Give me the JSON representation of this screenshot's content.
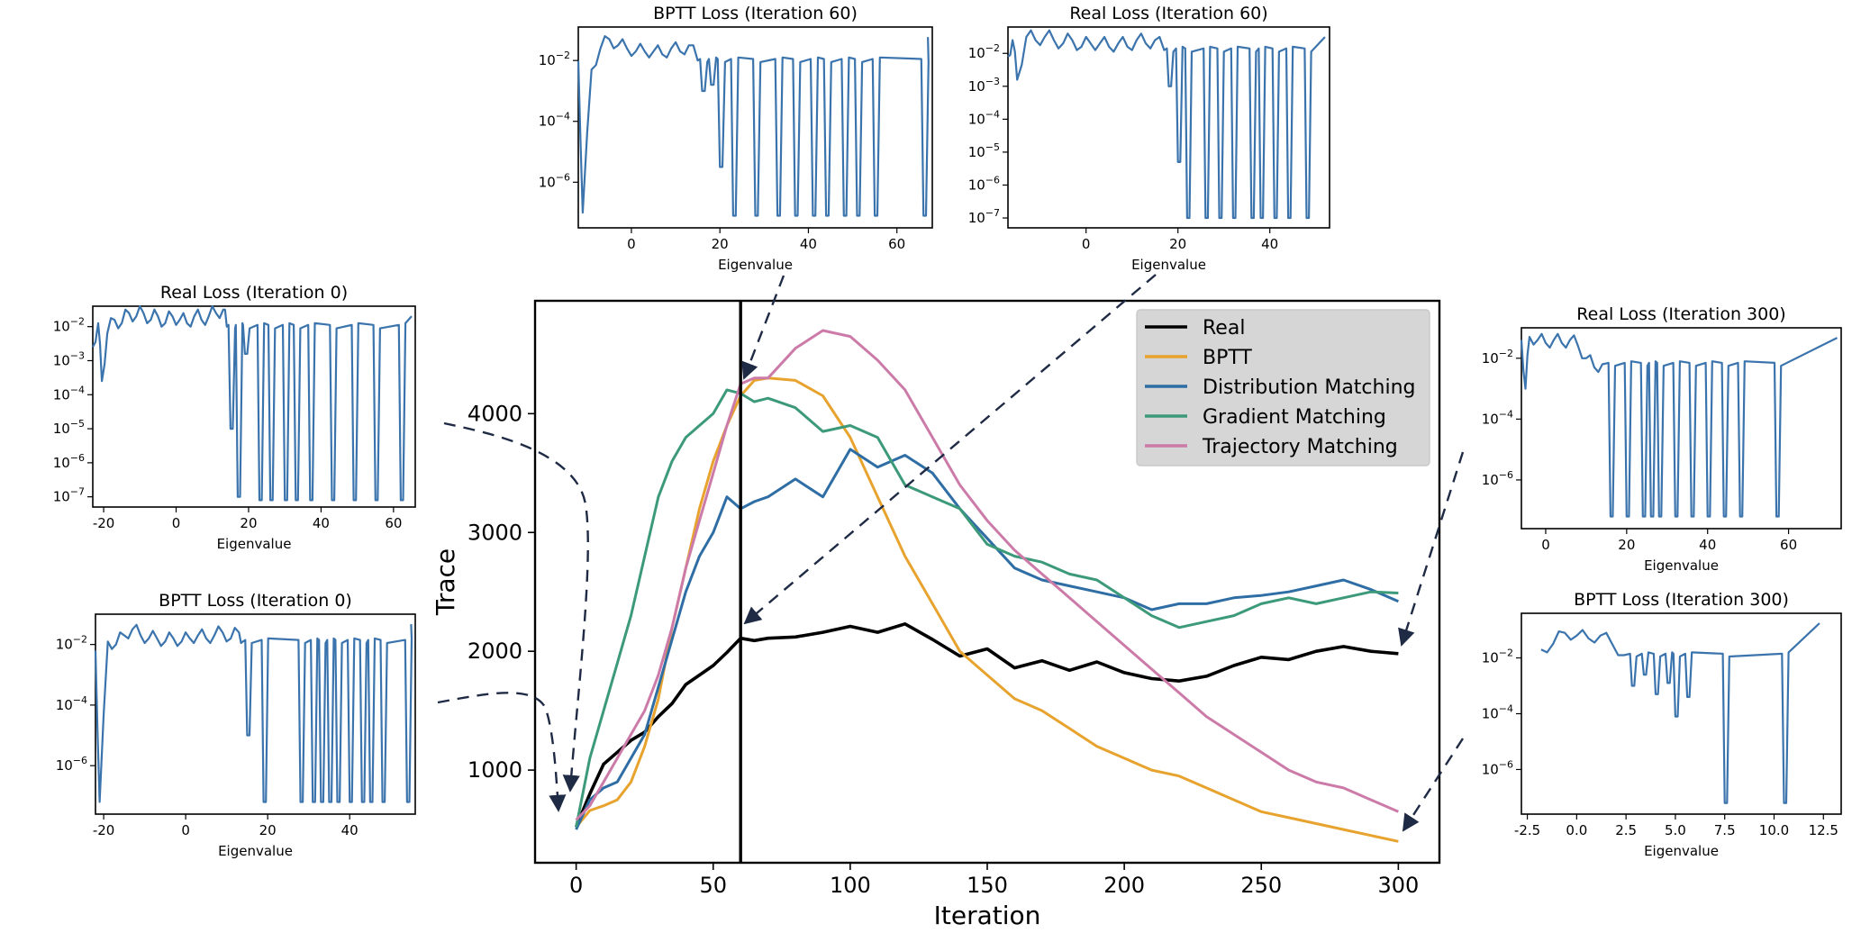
{
  "colors": {
    "real": "#000000",
    "bptt": "#e7a32e",
    "distribution": "#2f6ea5",
    "gradient": "#3c9a7a",
    "trajectory": "#cc7ba9",
    "inset_line": "#3b74ad",
    "arrow": "#1f2a44",
    "legend_bg": "#d6d6d6"
  },
  "chart_data": [
    {
      "id": "main",
      "type": "line",
      "title": "",
      "xlabel": "Iteration",
      "ylabel": "Trace",
      "xlim": [
        -15,
        315
      ],
      "ylim": [
        220,
        4950
      ],
      "xticks": [
        0,
        50,
        100,
        150,
        200,
        250,
        300
      ],
      "yticks": [
        1000,
        2000,
        3000,
        4000
      ],
      "vline_x": 60,
      "legend_position": "top-right",
      "series": [
        {
          "name": "Real",
          "key": "real",
          "x": [
            0,
            5,
            10,
            15,
            20,
            25,
            30,
            35,
            40,
            45,
            50,
            55,
            60,
            65,
            70,
            80,
            90,
            100,
            110,
            120,
            130,
            140,
            150,
            160,
            170,
            180,
            190,
            200,
            210,
            220,
            230,
            240,
            250,
            260,
            270,
            280,
            290,
            300
          ],
          "y": [
            520,
            800,
            1050,
            1150,
            1250,
            1320,
            1450,
            1560,
            1720,
            1800,
            1880,
            1990,
            2110,
            2090,
            2110,
            2120,
            2160,
            2210,
            2160,
            2230,
            2100,
            1960,
            2020,
            1860,
            1920,
            1840,
            1910,
            1820,
            1770,
            1750,
            1790,
            1880,
            1950,
            1930,
            2000,
            2040,
            2000,
            1980
          ]
        },
        {
          "name": "BPTT",
          "key": "bptt",
          "x": [
            0,
            5,
            10,
            15,
            20,
            25,
            30,
            35,
            40,
            45,
            50,
            55,
            60,
            65,
            70,
            80,
            90,
            100,
            110,
            120,
            130,
            140,
            150,
            160,
            170,
            180,
            190,
            200,
            210,
            220,
            230,
            240,
            250,
            260,
            270,
            280,
            290,
            300
          ],
          "y": [
            520,
            660,
            700,
            750,
            900,
            1200,
            1600,
            2200,
            2700,
            3200,
            3600,
            3900,
            4150,
            4280,
            4300,
            4280,
            4150,
            3800,
            3300,
            2800,
            2400,
            2000,
            1800,
            1600,
            1500,
            1350,
            1200,
            1100,
            1000,
            950,
            850,
            750,
            650,
            600,
            550,
            500,
            450,
            400
          ]
        },
        {
          "name": "Distribution Matching",
          "key": "distribution",
          "x": [
            0,
            5,
            10,
            15,
            20,
            25,
            30,
            35,
            40,
            45,
            50,
            55,
            60,
            65,
            70,
            80,
            90,
            100,
            110,
            120,
            130,
            140,
            150,
            160,
            170,
            180,
            190,
            200,
            210,
            220,
            230,
            240,
            250,
            260,
            270,
            280,
            290,
            300
          ],
          "y": [
            500,
            750,
            850,
            900,
            1100,
            1300,
            1700,
            2100,
            2500,
            2800,
            3000,
            3300,
            3200,
            3260,
            3300,
            3450,
            3300,
            3700,
            3550,
            3650,
            3500,
            3200,
            2950,
            2700,
            2600,
            2550,
            2500,
            2450,
            2350,
            2400,
            2400,
            2450,
            2470,
            2500,
            2550,
            2600,
            2520,
            2420
          ]
        },
        {
          "name": "Gradient Matching",
          "key": "gradient",
          "x": [
            0,
            5,
            10,
            15,
            20,
            25,
            30,
            35,
            40,
            45,
            50,
            55,
            60,
            65,
            70,
            80,
            90,
            100,
            110,
            120,
            130,
            140,
            150,
            160,
            170,
            180,
            190,
            200,
            210,
            220,
            230,
            240,
            250,
            260,
            270,
            280,
            290,
            300
          ],
          "y": [
            520,
            1100,
            1500,
            1900,
            2300,
            2800,
            3300,
            3600,
            3800,
            3900,
            4000,
            4200,
            4170,
            4100,
            4130,
            4050,
            3850,
            3900,
            3800,
            3400,
            3300,
            3200,
            2900,
            2800,
            2750,
            2650,
            2600,
            2450,
            2300,
            2200,
            2250,
            2300,
            2400,
            2450,
            2400,
            2450,
            2500,
            2490
          ]
        },
        {
          "name": "Trajectory Matching",
          "key": "trajectory",
          "x": [
            0,
            5,
            10,
            15,
            20,
            25,
            30,
            35,
            40,
            45,
            50,
            55,
            60,
            65,
            70,
            80,
            90,
            100,
            110,
            120,
            130,
            140,
            150,
            160,
            170,
            180,
            190,
            200,
            210,
            220,
            230,
            240,
            250,
            260,
            270,
            280,
            290,
            300
          ],
          "y": [
            580,
            700,
            900,
            1100,
            1300,
            1500,
            1800,
            2200,
            2700,
            3100,
            3500,
            3900,
            4250,
            4300,
            4300,
            4550,
            4700,
            4650,
            4450,
            4200,
            3800,
            3400,
            3100,
            2850,
            2650,
            2450,
            2250,
            2050,
            1850,
            1650,
            1450,
            1300,
            1150,
            1000,
            900,
            850,
            750,
            650
          ]
        }
      ]
    },
    {
      "id": "real-0",
      "type": "line",
      "title": "Real Loss (Iteration 0)",
      "xlabel": "Eigenvalue",
      "scale_y": "log",
      "xlim": [
        -23,
        66
      ],
      "ylim": [
        -7.3,
        -1.4
      ],
      "xticks": [
        -20,
        0,
        20,
        40,
        60
      ],
      "yticks": [
        -2,
        -3,
        -4,
        -5,
        -6,
        -7
      ],
      "ytick_labels": [
        "10^-2",
        "10^-3",
        "10^-4",
        "10^-5",
        "10^-6",
        "10^-7"
      ]
    },
    {
      "id": "bptt-0",
      "type": "line",
      "title": "BPTT Loss (Iteration 0)",
      "xlabel": "Eigenvalue",
      "scale_y": "log",
      "xlim": [
        -22,
        56
      ],
      "ylim": [
        -7.6,
        -1.0
      ],
      "xticks": [
        -20,
        0,
        20,
        40
      ],
      "yticks": [
        -2,
        -4,
        -6
      ],
      "ytick_labels": [
        "10^-2",
        "10^-4",
        "10^-6"
      ]
    },
    {
      "id": "bptt-60",
      "type": "line",
      "title": "BPTT Loss (Iteration 60)",
      "xlabel": "Eigenvalue",
      "scale_y": "log",
      "xlim": [
        -12,
        68
      ],
      "ylim": [
        -7.5,
        -0.9
      ],
      "xticks": [
        0,
        20,
        40,
        60
      ],
      "yticks": [
        -2,
        -4,
        -6
      ],
      "ytick_labels": [
        "10^-2",
        "10^-4",
        "10^-6"
      ]
    },
    {
      "id": "real-60",
      "type": "line",
      "title": "Real Loss (Iteration 60)",
      "xlabel": "Eigenvalue",
      "scale_y": "log",
      "xlim": [
        -17,
        53
      ],
      "ylim": [
        -7.3,
        -1.2
      ],
      "xticks": [
        0,
        20,
        40
      ],
      "yticks": [
        -2,
        -3,
        -4,
        -5,
        -6,
        -7
      ],
      "ytick_labels": [
        "10^-2",
        "10^-3",
        "10^-4",
        "10^-5",
        "10^-6",
        "10^-7"
      ]
    },
    {
      "id": "real-300",
      "type": "line",
      "title": "Real Loss (Iteration 300)",
      "xlabel": "Eigenvalue",
      "scale_y": "log",
      "xlim": [
        -6,
        73
      ],
      "ylim": [
        -7.6,
        -1.0
      ],
      "xticks": [
        0,
        20,
        40,
        60
      ],
      "yticks": [
        -2,
        -4,
        -6
      ],
      "ytick_labels": [
        "10^-2",
        "10^-4",
        "10^-6"
      ]
    },
    {
      "id": "bptt-300",
      "type": "line",
      "title": "BPTT Loss (Iteration 300)",
      "xlabel": "Eigenvalue",
      "scale_y": "log",
      "xlim": [
        -2.8,
        13.4
      ],
      "ylim": [
        -7.6,
        -0.4
      ],
      "xticks": [
        -2.5,
        0.0,
        2.5,
        5.0,
        7.5,
        10.0,
        12.5
      ],
      "yticks": [
        -2,
        -4,
        -6
      ],
      "ytick_labels": [
        "10^-2",
        "10^-4",
        "10^-6"
      ]
    }
  ]
}
